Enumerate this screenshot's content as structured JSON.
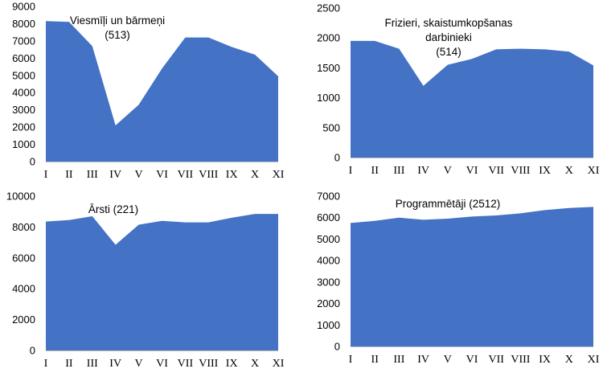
{
  "chart_data": [
    {
      "type": "area",
      "title_lines": [
        "Viesmīļi un bārmeņi",
        "(513)"
      ],
      "categories": [
        "I",
        "II",
        "III",
        "IV",
        "V",
        "VI",
        "VII",
        "VIII",
        "IX",
        "X",
        "XI"
      ],
      "values": [
        8150,
        8100,
        6700,
        2100,
        3300,
        5400,
        7200,
        7200,
        6650,
        6200,
        4950
      ],
      "ylim": [
        0,
        9000
      ],
      "yticks": [
        0,
        1000,
        2000,
        3000,
        4000,
        5000,
        6000,
        7000,
        8000,
        9000
      ],
      "color": "#4472C4",
      "grid": false
    },
    {
      "type": "area",
      "title_lines": [
        "Frizieri, skaistumkopšanas",
        "darbinieki",
        "(514)"
      ],
      "categories": [
        "I",
        "II",
        "III",
        "IV",
        "V",
        "VI",
        "VII",
        "VIII",
        "IX",
        "X",
        "XI"
      ],
      "values": [
        1950,
        1950,
        1820,
        1200,
        1550,
        1650,
        1810,
        1820,
        1810,
        1770,
        1540
      ],
      "ylim": [
        0,
        2500
      ],
      "yticks": [
        0,
        500,
        1000,
        1500,
        2000,
        2500
      ],
      "color": "#4472C4",
      "grid": false
    },
    {
      "type": "area",
      "title_lines": [
        "Ārsti (221)"
      ],
      "categories": [
        "I",
        "II",
        "III",
        "IV",
        "V",
        "VI",
        "VII",
        "VIII",
        "IX",
        "X",
        "XI"
      ],
      "values": [
        8350,
        8450,
        8700,
        6850,
        8150,
        8400,
        8300,
        8300,
        8600,
        8850,
        8850
      ],
      "ylim": [
        0,
        10000
      ],
      "yticks": [
        0,
        2000,
        4000,
        6000,
        8000,
        10000
      ],
      "color": "#4472C4",
      "grid": false
    },
    {
      "type": "area",
      "title_lines": [
        "Programmētāji (2512)"
      ],
      "categories": [
        "I",
        "II",
        "III",
        "IV",
        "V",
        "VI",
        "VII",
        "VIII",
        "IX",
        "X",
        "XI"
      ],
      "values": [
        5750,
        5850,
        6000,
        5900,
        5950,
        6050,
        6100,
        6200,
        6350,
        6450,
        6500
      ],
      "ylim": [
        0,
        7000
      ],
      "yticks": [
        0,
        1000,
        2000,
        3000,
        4000,
        5000,
        6000,
        7000
      ],
      "color": "#4472C4",
      "grid": false
    }
  ]
}
